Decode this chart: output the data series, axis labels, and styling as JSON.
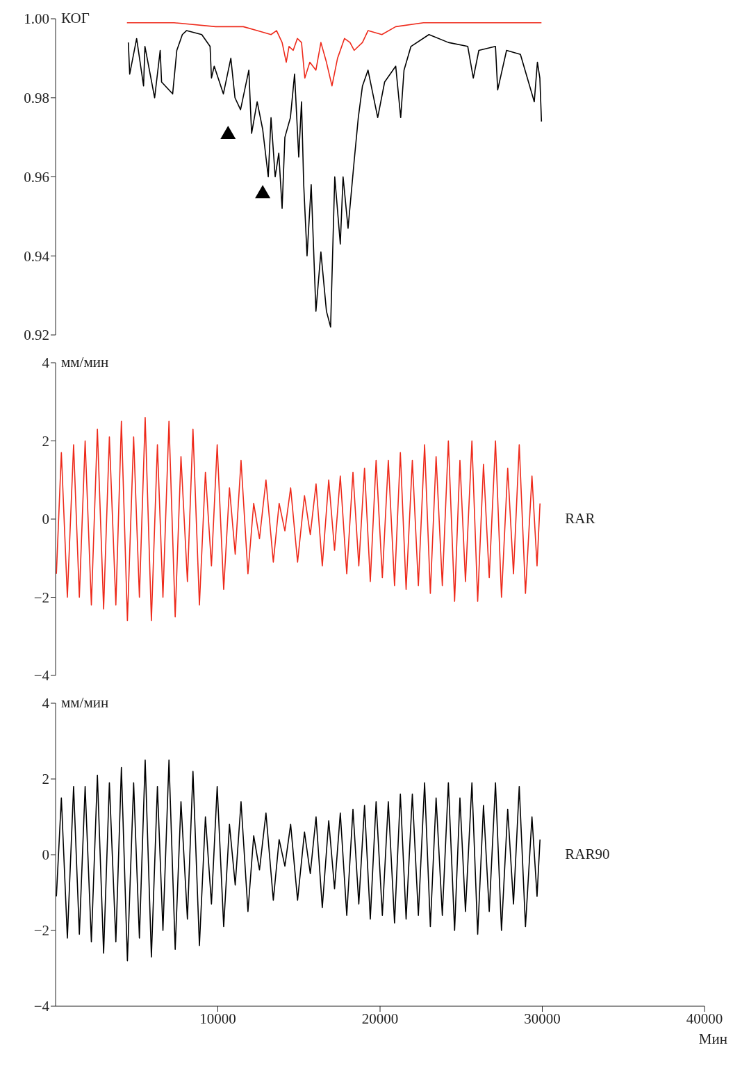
{
  "chart_data": [
    {
      "type": "line",
      "ylabel": "КОГ",
      "tick_labels": "y",
      "xlim": [
        0,
        40000
      ],
      "ylim": [
        0.92,
        1.0
      ],
      "yticks": [
        0.92,
        0.94,
        0.96,
        0.98,
        {
          "value": 1.0,
          "label": "1.00"
        }
      ],
      "series": [
        {
          "color": "#000000",
          "x": [
            4484,
            4569,
            4996,
            5423,
            5508,
            6106,
            6448,
            6533,
            7216,
            7473,
            7814,
            8070,
            9010,
            9522,
            9608,
            9778,
            10342,
            10803,
            11059,
            11401,
            11913,
            12050,
            12084,
            12426,
            12767,
            13109,
            13280,
            13536,
            13758,
            13963,
            14134,
            14475,
            14732,
            14988,
            15159,
            15295,
            15500,
            15756,
            16047,
            16354,
            16696,
            16952,
            17208,
            17550,
            17721,
            18028,
            18404,
            18660,
            18916,
            19258,
            19856,
            20283,
            20966,
            21273,
            21478,
            21905,
            23015,
            24211,
            25407,
            25748,
            26090,
            27115,
            27251,
            27798,
            28652,
            29506,
            29700,
            29850,
            29950
          ],
          "values": [
            0.994,
            0.986,
            0.995,
            0.983,
            0.993,
            0.98,
            0.992,
            0.984,
            0.981,
            0.992,
            0.996,
            0.997,
            0.996,
            0.993,
            0.985,
            0.988,
            0.981,
            0.99,
            0.98,
            0.977,
            0.987,
            0.974,
            0.971,
            0.979,
            0.972,
            0.96,
            0.975,
            0.96,
            0.966,
            0.952,
            0.97,
            0.975,
            0.986,
            0.965,
            0.979,
            0.958,
            0.94,
            0.958,
            0.926,
            0.941,
            0.926,
            0.922,
            0.96,
            0.943,
            0.96,
            0.947,
            0.964,
            0.975,
            0.983,
            0.987,
            0.975,
            0.984,
            0.988,
            0.975,
            0.987,
            0.993,
            0.996,
            0.994,
            0.993,
            0.985,
            0.992,
            0.993,
            0.982,
            0.992,
            0.991,
            0.979,
            0.989,
            0.985,
            0.974
          ]
        },
        {
          "color": "#ee2a1b",
          "x": [
            4398,
            7302,
            9864,
            11572,
            12426,
            13280,
            13621,
            13963,
            14219,
            14390,
            14646,
            14902,
            15159,
            15364,
            15671,
            16047,
            16354,
            16696,
            17037,
            17379,
            17806,
            18148,
            18404,
            18916,
            19258,
            20112,
            20966,
            22674,
            24382,
            29950
          ],
          "values": [
            0.999,
            0.999,
            0.998,
            0.998,
            0.997,
            0.996,
            0.997,
            0.994,
            0.989,
            0.993,
            0.992,
            0.995,
            0.994,
            0.985,
            0.989,
            0.987,
            0.994,
            0.989,
            0.983,
            0.99,
            0.995,
            0.994,
            0.992,
            0.994,
            0.997,
            0.996,
            0.998,
            0.999,
            0.999,
            0.999
          ]
        },
        {
          "type": "scatter",
          "marker": "triangle",
          "color": "#000000",
          "x": [
            10632,
            12767
          ],
          "values": [
            0.971,
            0.956
          ]
        }
      ]
    },
    {
      "type": "line",
      "ylabel": "мм/мин",
      "tick_labels": "y",
      "xlim": [
        0,
        40000
      ],
      "ylim": [
        -4,
        4
      ],
      "yticks": [
        {
          "value": -4,
          "label": "−4"
        },
        {
          "value": -2,
          "label": "−2"
        },
        0,
        2,
        4
      ],
      "x": [
        50,
        356,
        726,
        1111,
        1465,
        1822,
        2206,
        2577,
        2961,
        3316,
        3715,
        4057,
        4427,
        4811,
        5167,
        5522,
        5906,
        6277,
        6618,
        6990,
        7373,
        7729,
        8127,
        8468,
        8866,
        9236,
        9608,
        9962,
        10362,
        10718,
        11073,
        11431,
        11857,
        12212,
        12568,
        12968,
        13421,
        13780,
        14134,
        14489,
        14916,
        15343,
        15700,
        16055,
        16440,
        16837,
        17195,
        17550,
        17948,
        18331,
        18690,
        19044,
        19399,
        19757,
        20142,
        20509,
        20894,
        21252,
        21606,
        21991,
        22362,
        22746,
        23101,
        23455,
        23839,
        24211,
        24595,
        24924,
        25265,
        25663,
        26018,
        26376,
        26730,
        27115,
        27486,
        27869,
        28225,
        28580,
        28964,
        29364,
        29677,
        29860
      ],
      "series": [
        {
          "name": "RAR",
          "color": "#ee2a1b",
          "values": [
            -1.4,
            1.7,
            -2.0,
            1.9,
            -2.0,
            2.0,
            -2.2,
            2.3,
            -2.3,
            2.1,
            -2.2,
            2.5,
            -2.6,
            2.1,
            -2.0,
            2.6,
            -2.6,
            1.9,
            -2.0,
            2.5,
            -2.5,
            1.6,
            -1.6,
            2.3,
            -2.2,
            1.2,
            -1.2,
            1.9,
            -1.8,
            0.8,
            -0.9,
            1.5,
            -1.4,
            0.4,
            -0.5,
            1.0,
            -1.1,
            0.4,
            -0.3,
            0.8,
            -1.1,
            0.6,
            -0.4,
            0.9,
            -1.2,
            1.0,
            -0.8,
            1.1,
            -1.4,
            1.2,
            -1.2,
            1.3,
            -1.6,
            1.5,
            -1.5,
            1.5,
            -1.7,
            1.7,
            -1.8,
            1.5,
            -1.7,
            1.9,
            -1.9,
            1.6,
            -1.7,
            2.0,
            -2.1,
            1.5,
            -1.6,
            2.0,
            -2.1,
            1.4,
            -1.5,
            2.0,
            -2.0,
            1.3,
            -1.4,
            1.9,
            -1.9,
            1.1,
            -1.2,
            0.4
          ]
        }
      ]
    },
    {
      "type": "line",
      "ylabel": "мм/мин",
      "xlabel": "Мин",
      "xlim": [
        0,
        40000
      ],
      "xticks": [
        10000,
        20000,
        30000,
        40000
      ],
      "ylim": [
        -4,
        4
      ],
      "yticks": [
        {
          "value": -4,
          "label": "−4"
        },
        {
          "value": -2,
          "label": "−2"
        },
        0,
        2,
        4
      ],
      "x": [
        50,
        356,
        726,
        1111,
        1465,
        1822,
        2206,
        2577,
        2961,
        3316,
        3715,
        4057,
        4427,
        4811,
        5167,
        5522,
        5906,
        6277,
        6618,
        6990,
        7373,
        7729,
        8127,
        8468,
        8866,
        9236,
        9608,
        9962,
        10362,
        10718,
        11073,
        11431,
        11857,
        12212,
        12568,
        12968,
        13421,
        13780,
        14134,
        14489,
        14916,
        15343,
        15700,
        16055,
        16440,
        16837,
        17195,
        17550,
        17948,
        18331,
        18690,
        19044,
        19399,
        19757,
        20142,
        20509,
        20894,
        21252,
        21606,
        21991,
        22362,
        22746,
        23101,
        23455,
        23839,
        24211,
        24595,
        24924,
        25265,
        25663,
        26018,
        26376,
        26730,
        27115,
        27486,
        27869,
        28225,
        28580,
        28964,
        29364,
        29677,
        29860
      ],
      "series": [
        {
          "name": "RAR90",
          "color": "#000000",
          "values": [
            -1.1,
            1.5,
            -2.2,
            1.8,
            -2.1,
            1.8,
            -2.3,
            2.1,
            -2.6,
            1.9,
            -2.3,
            2.3,
            -2.8,
            1.9,
            -2.2,
            2.5,
            -2.7,
            1.8,
            -2.0,
            2.5,
            -2.5,
            1.4,
            -1.7,
            2.2,
            -2.4,
            1.0,
            -1.3,
            1.8,
            -1.9,
            0.8,
            -0.8,
            1.4,
            -1.5,
            0.5,
            -0.4,
            1.1,
            -1.2,
            0.4,
            -0.3,
            0.8,
            -1.2,
            0.6,
            -0.5,
            1.0,
            -1.4,
            0.9,
            -0.9,
            1.1,
            -1.6,
            1.2,
            -1.3,
            1.3,
            -1.7,
            1.4,
            -1.6,
            1.4,
            -1.8,
            1.6,
            -1.7,
            1.6,
            -1.6,
            1.9,
            -1.9,
            1.5,
            -1.6,
            1.9,
            -2.0,
            1.5,
            -1.5,
            1.9,
            -2.1,
            1.3,
            -1.5,
            1.9,
            -2.0,
            1.2,
            -1.3,
            1.8,
            -1.9,
            1.0,
            -1.1,
            0.4
          ]
        }
      ]
    }
  ]
}
